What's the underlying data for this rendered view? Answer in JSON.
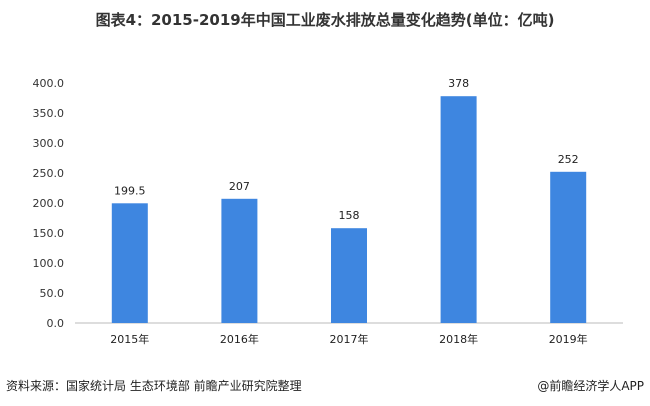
{
  "title": "图表4：2015-2019年中国工业废水排放总量变化趋势(单位：亿吨)",
  "source": "资料来源：国家统计局 生态环境部 前瞻产业研究院整理",
  "brand": "@前瞻经济学人APP",
  "chart_data": {
    "type": "bar",
    "title": "图表4：2015-2019年中国工业废水排放总量变化趋势(单位：亿吨)",
    "categories": [
      "2015年",
      "2016年",
      "2017年",
      "2018年",
      "2019年"
    ],
    "values": [
      199.5,
      207,
      158,
      378,
      252
    ],
    "data_labels": [
      "199.5",
      "207",
      "158",
      "378",
      "252"
    ],
    "yticks": [
      "0.0",
      "50.0",
      "100.0",
      "150.0",
      "200.0",
      "250.0",
      "300.0",
      "350.0",
      "400.0"
    ],
    "ylim": [
      0,
      400
    ],
    "grid": false,
    "bar_color": "#3e86e0"
  }
}
